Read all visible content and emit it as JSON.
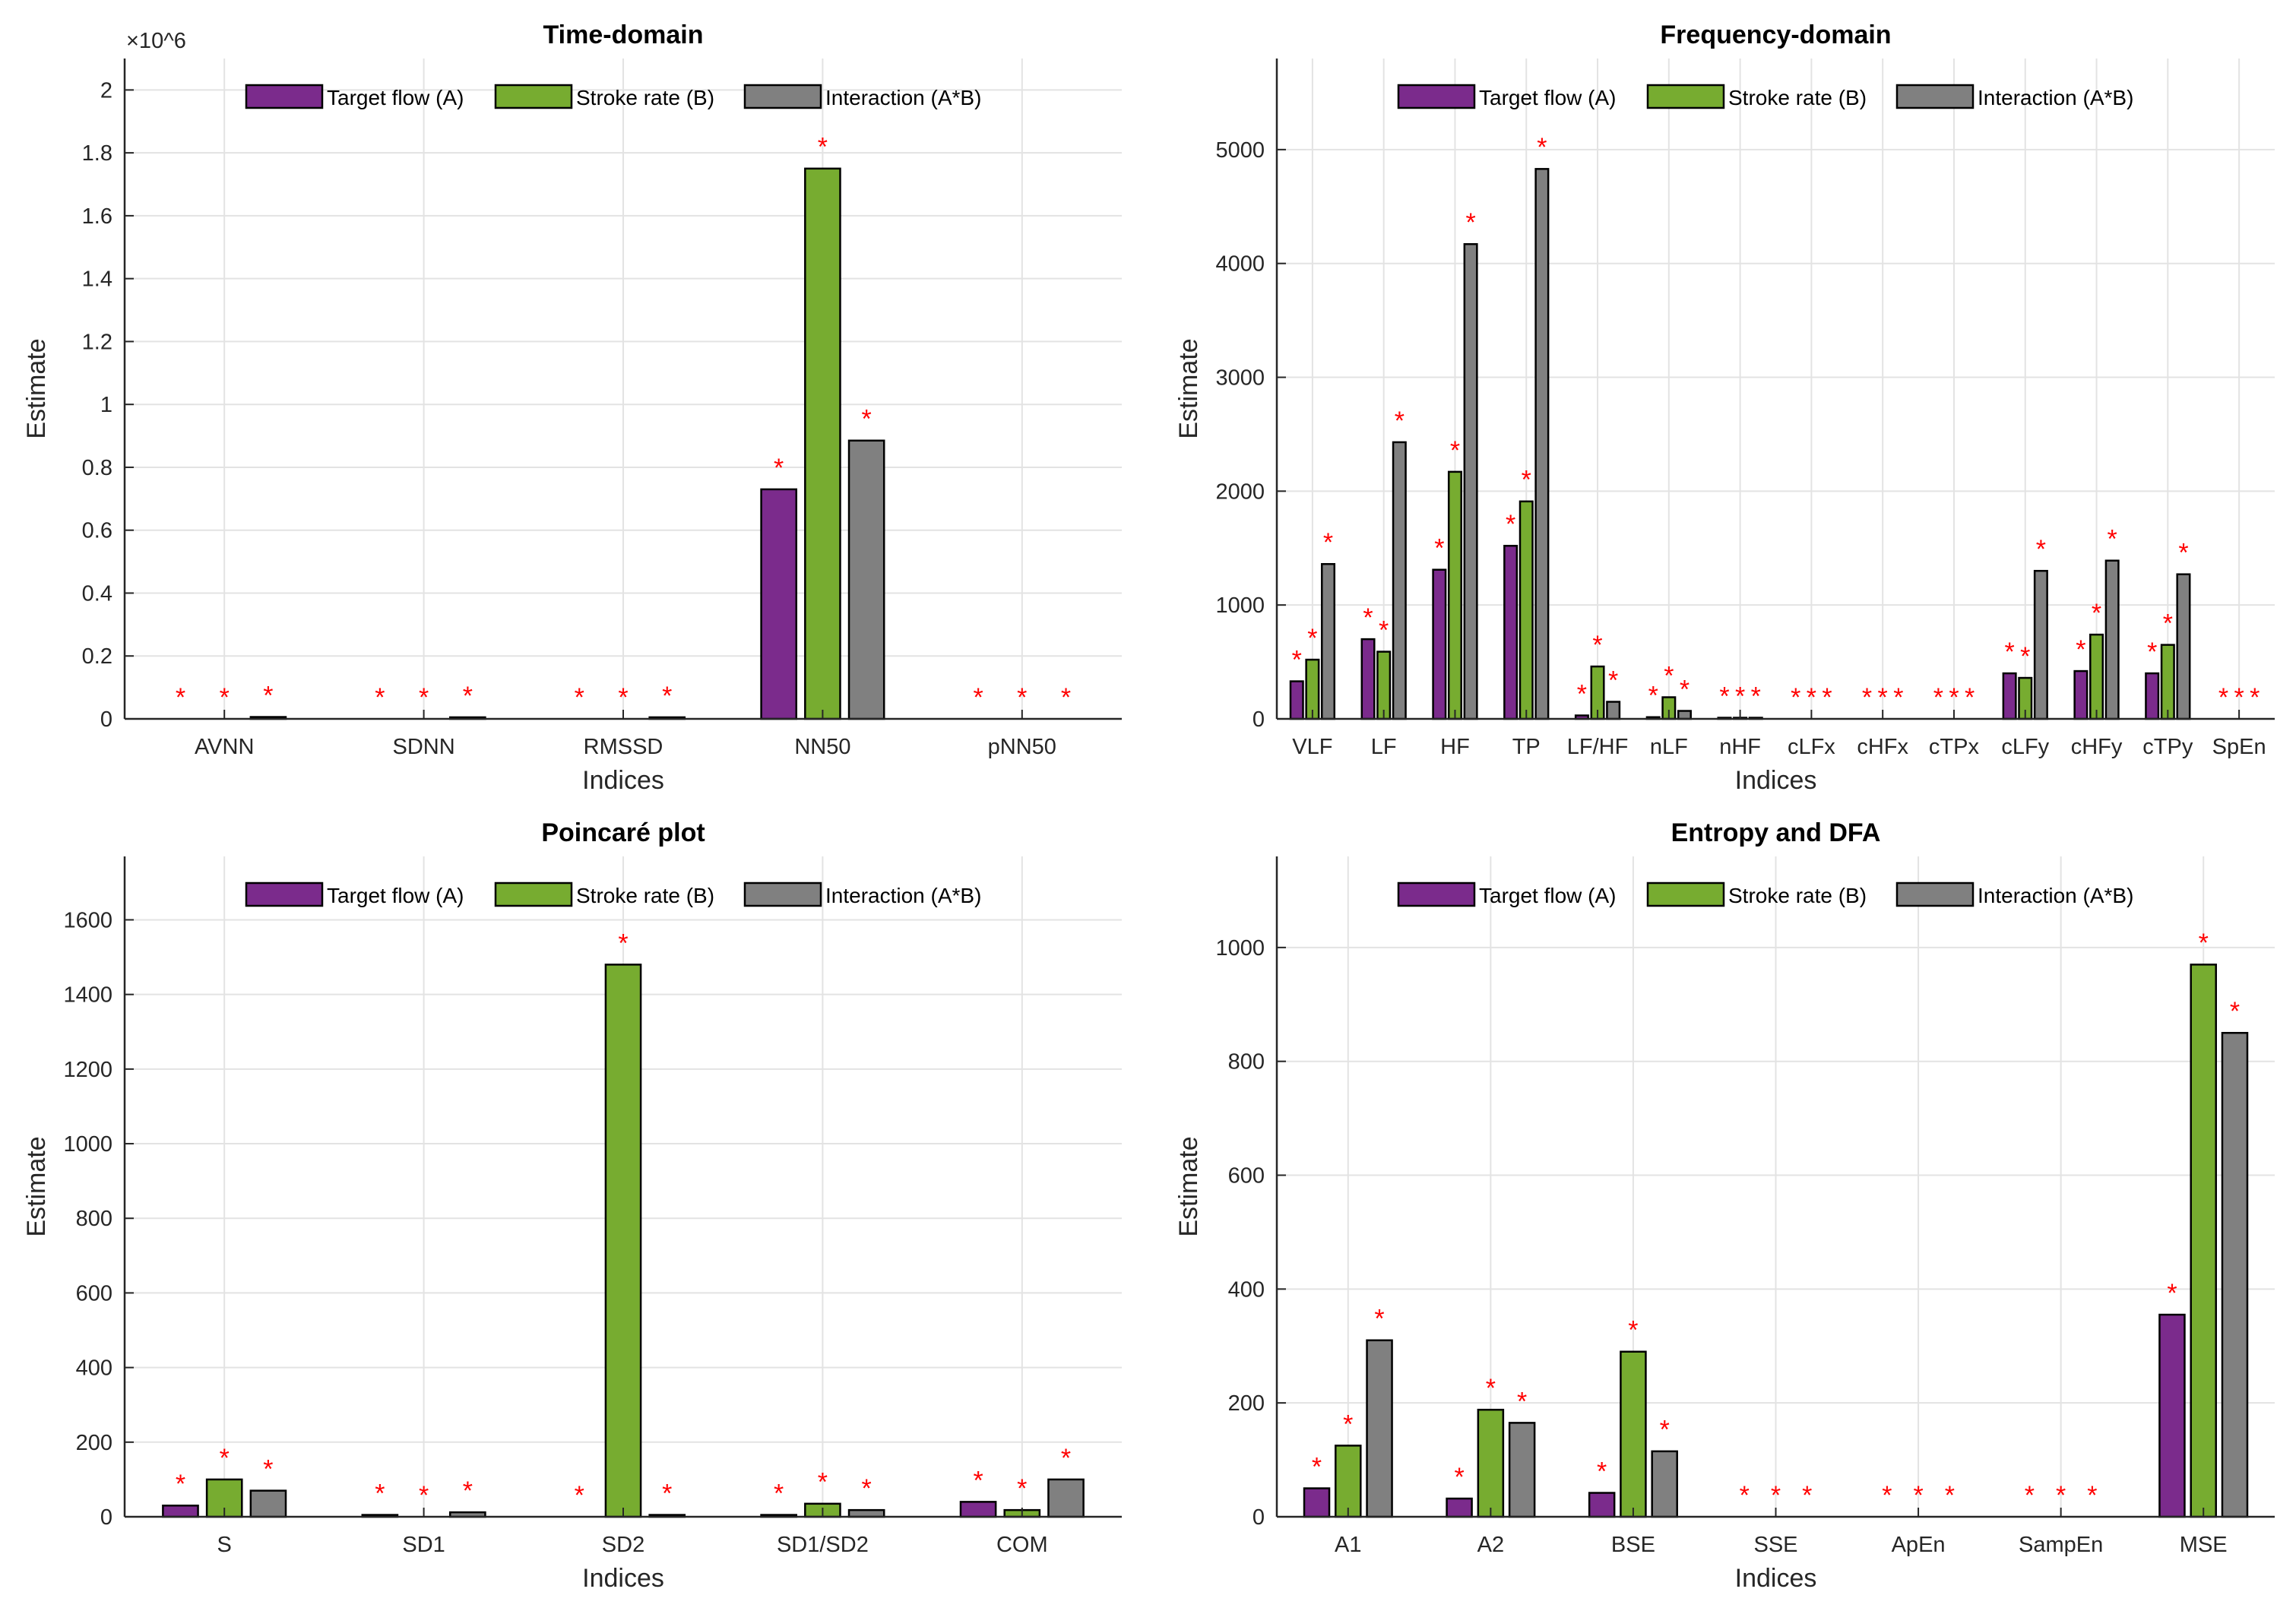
{
  "legend": [
    "Target flow (A)",
    "Stroke rate (B)",
    "Interaction (A*B)"
  ],
  "colors": {
    "a": "#7B2B8C",
    "b": "#77AC30",
    "ab": "#808080",
    "star": "#FF0000"
  },
  "chart_data": [
    {
      "type": "bar",
      "title": "Time-domain",
      "xlabel": "Indices",
      "ylabel": "Estimate",
      "exponent_label": "×10^6",
      "ylim": [
        0,
        2.1
      ],
      "yticks": [
        0,
        0.2,
        0.4,
        0.6,
        0.8,
        1,
        1.2,
        1.4,
        1.6,
        1.8,
        2
      ],
      "categories": [
        "AVNN",
        "SDNN",
        "RMSSD",
        "NN50",
        "pNN50"
      ],
      "series": [
        {
          "name": "Target flow (A)",
          "values": [
            0.0,
            0.0,
            0.0,
            0.73,
            0.0
          ]
        },
        {
          "name": "Stroke rate (B)",
          "values": [
            0.0,
            0.0,
            0.0,
            1.75,
            0.0
          ]
        },
        {
          "name": "Interaction (A*B)",
          "values": [
            0.006,
            0.005,
            0.005,
            0.885,
            0.0
          ]
        }
      ],
      "significance_marker": "*",
      "grid": true,
      "legend_position": "top-center"
    },
    {
      "type": "bar",
      "title": "Frequency-domain",
      "xlabel": "Indices",
      "ylabel": "Estimate",
      "ylim": [
        0,
        5800
      ],
      "yticks": [
        0,
        1000,
        2000,
        3000,
        4000,
        5000
      ],
      "categories": [
        "VLF",
        "LF",
        "HF",
        "TP",
        "LF/HF",
        "nLF",
        "nHF",
        "cLFx",
        "cHFx",
        "cTPx",
        "cLFy",
        "cHFy",
        "cTPy",
        "SpEn"
      ],
      "series": [
        {
          "name": "Target flow (A)",
          "values": [
            330,
            700,
            1310,
            1520,
            30,
            15,
            10,
            0,
            0,
            0,
            400,
            420,
            400,
            0
          ]
        },
        {
          "name": "Stroke rate (B)",
          "values": [
            520,
            590,
            2170,
            1910,
            460,
            190,
            10,
            0,
            0,
            0,
            360,
            740,
            650,
            0
          ]
        },
        {
          "name": "Interaction (A*B)",
          "values": [
            1360,
            2430,
            4170,
            4830,
            150,
            70,
            10,
            0,
            0,
            0,
            1300,
            1390,
            1270,
            0
          ]
        }
      ],
      "significance_marker": "*",
      "grid": true,
      "legend_position": "top-center"
    },
    {
      "type": "bar",
      "title": "Poincaré plot",
      "xlabel": "Indices",
      "ylabel": "Estimate",
      "ylim": [
        0,
        1770
      ],
      "yticks": [
        0,
        200,
        400,
        600,
        800,
        1000,
        1200,
        1400,
        1600
      ],
      "categories": [
        "S",
        "SD1",
        "SD2",
        "SD1/SD2",
        "COM"
      ],
      "series": [
        {
          "name": "Target flow (A)",
          "values": [
            30,
            5,
            0,
            5,
            40
          ]
        },
        {
          "name": "Stroke rate (B)",
          "values": [
            100,
            0,
            1480,
            35,
            18
          ]
        },
        {
          "name": "Interaction (A*B)",
          "values": [
            70,
            12,
            5,
            18,
            100
          ]
        }
      ],
      "significance_marker": "*",
      "grid": true,
      "legend_position": "top-center"
    },
    {
      "type": "bar",
      "title": "Entropy and DFA",
      "xlabel": "Indices",
      "ylabel": "Estimate",
      "ylim": [
        0,
        1160
      ],
      "yticks": [
        0,
        200,
        400,
        600,
        800,
        1000
      ],
      "categories": [
        "A1",
        "A2",
        "BSE",
        "SSE",
        "ApEn",
        "SampEn",
        "MSE"
      ],
      "series": [
        {
          "name": "Target flow (A)",
          "values": [
            50,
            32,
            42,
            0,
            0,
            0,
            355
          ]
        },
        {
          "name": "Stroke rate (B)",
          "values": [
            125,
            188,
            290,
            0,
            0,
            0,
            970
          ]
        },
        {
          "name": "Interaction (A*B)",
          "values": [
            310,
            165,
            115,
            0,
            0,
            0,
            850
          ]
        }
      ],
      "significance_marker": "*",
      "grid": true,
      "legend_position": "top-center"
    }
  ]
}
